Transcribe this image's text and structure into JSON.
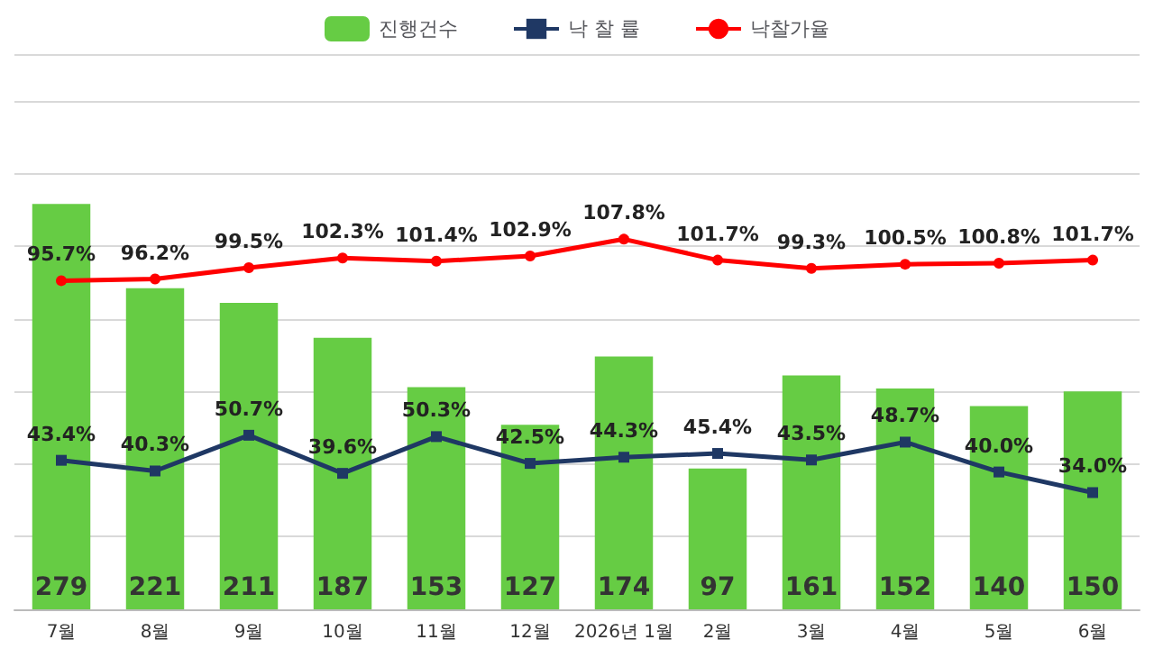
{
  "chart_data": {
    "type": "bar",
    "categories": [
      "7월",
      "8월",
      "9월",
      "10월",
      "11월",
      "12월",
      "2026년 1월",
      "2월",
      "3월",
      "4월",
      "5월",
      "6월"
    ],
    "series": [
      {
        "name": "진행건수",
        "color": "#66cc44",
        "values": [
          279,
          221,
          211,
          187,
          153,
          127,
          174,
          97,
          161,
          152,
          140,
          150
        ]
      },
      {
        "name": "낙 찰 률",
        "type": "line",
        "axis": "y2",
        "color": "#1f3864",
        "marker": "square",
        "values": [
          43.4,
          40.3,
          50.7,
          39.6,
          50.3,
          42.5,
          44.3,
          45.4,
          43.5,
          48.7,
          40.0,
          34.0
        ],
        "value_labels": [
          "43.4%",
          "40.3%",
          "50.7%",
          "39.6%",
          "50.3%",
          "42.5%",
          "44.3%",
          "45.4%",
          "43.5%",
          "48.7%",
          "40.0%",
          "34.0%"
        ]
      },
      {
        "name": "낙찰가율",
        "type": "line",
        "axis": "y2",
        "color": "#ff0000",
        "marker": "circle",
        "values": [
          95.7,
          96.2,
          99.5,
          102.3,
          101.4,
          102.9,
          107.8,
          101.7,
          99.3,
          100.5,
          100.8,
          101.7
        ],
        "value_labels": [
          "95.7%",
          "96.2%",
          "99.5%",
          "102.3%",
          "101.4%",
          "102.9%",
          "107.8%",
          "101.7%",
          "99.3%",
          "100.5%",
          "100.8%",
          "101.7%"
        ]
      }
    ],
    "data_labels": true,
    "grid": "y",
    "legend": "top"
  }
}
